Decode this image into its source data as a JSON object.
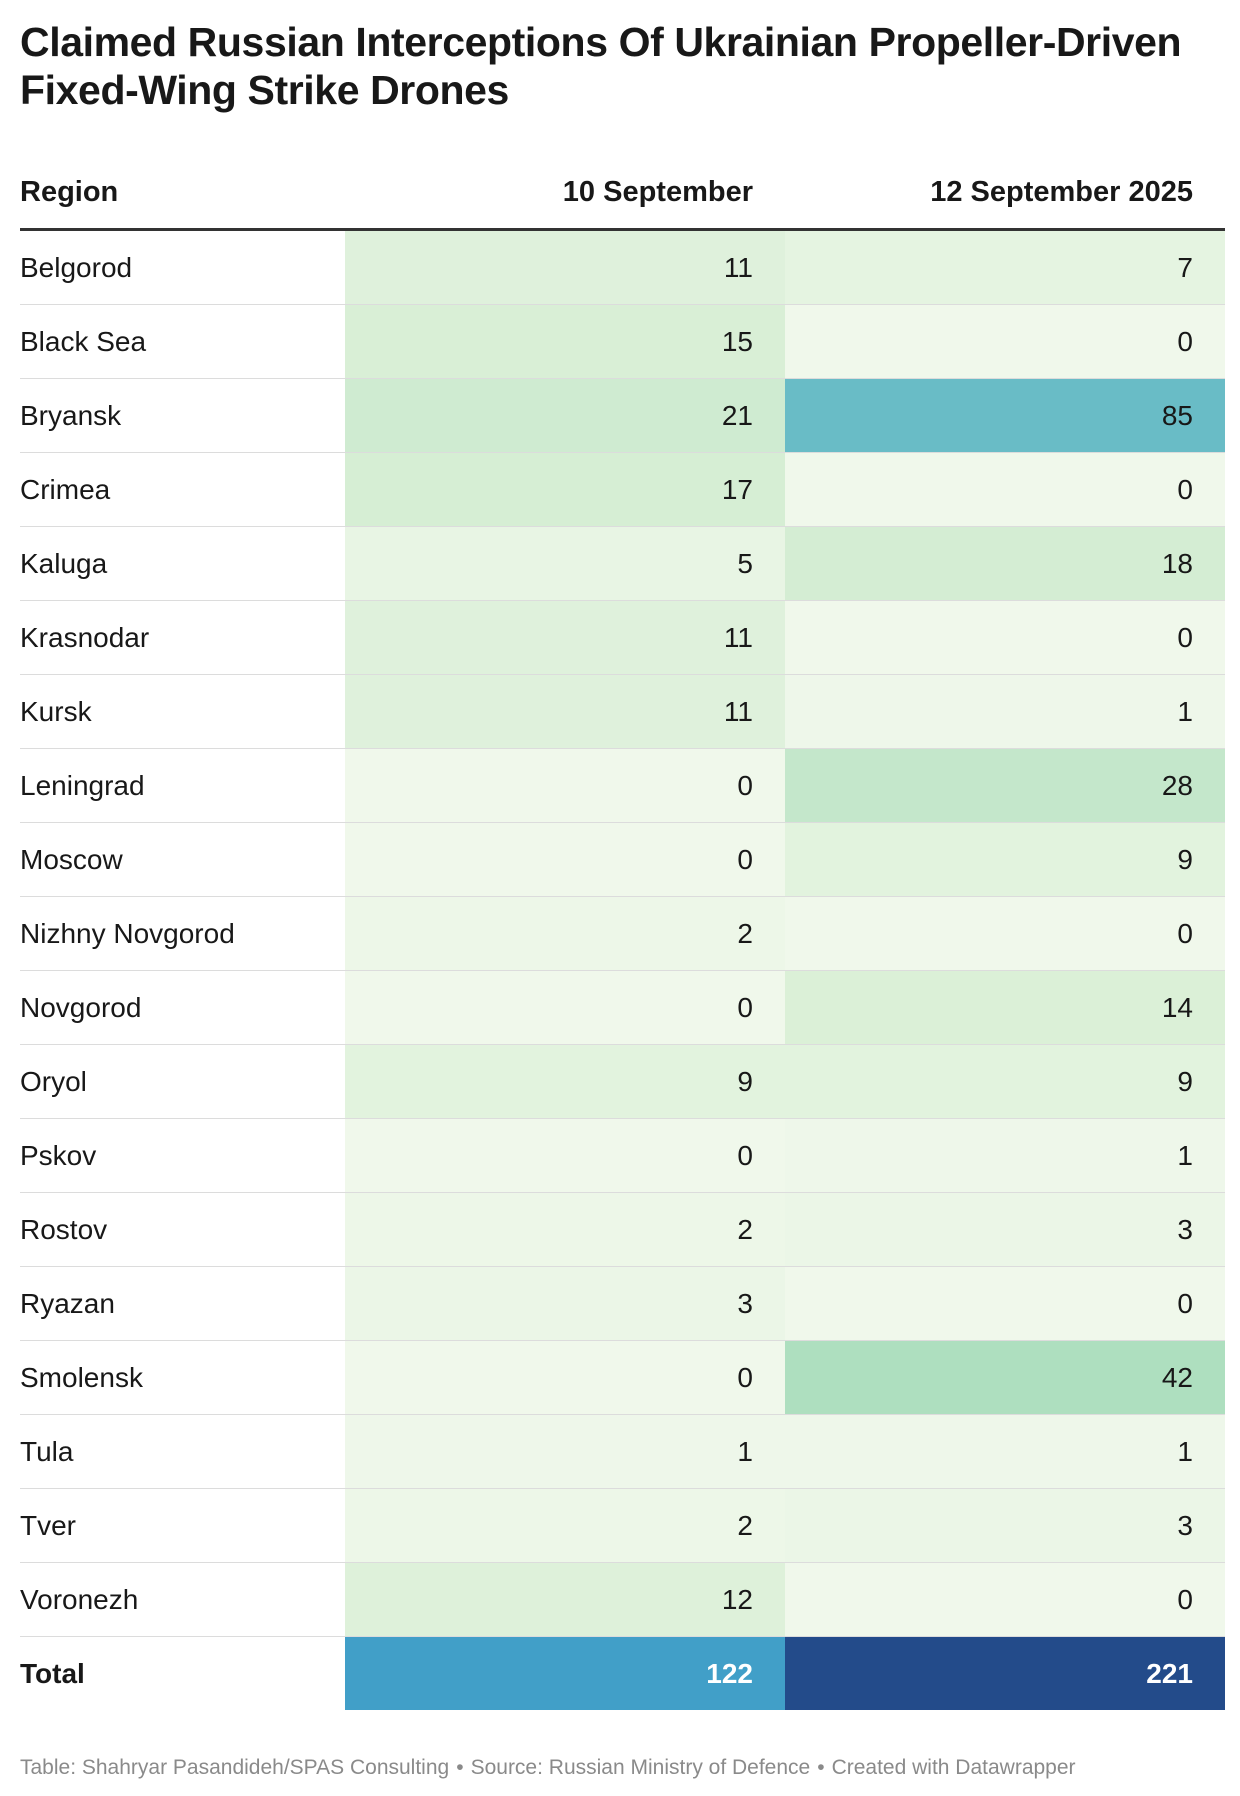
{
  "title": "Claimed Russian Interceptions Of Ukrainian Propeller-Driven Fixed-Wing Strike Drones",
  "columns": [
    "Region",
    "10 September",
    "12 September 2025"
  ],
  "chart_data": {
    "type": "table",
    "title": "Claimed Russian Interceptions Of Ukrainian Propeller-Driven Fixed-Wing Strike Drones",
    "columns": [
      "Region",
      "10 September",
      "12 September 2025"
    ],
    "rows": [
      {
        "region": "Belgorod",
        "v1": "11",
        "v2": "7"
      },
      {
        "region": "Black Sea",
        "v1": "15",
        "v2": "0"
      },
      {
        "region": "Bryansk",
        "v1": "21",
        "v2": "85"
      },
      {
        "region": "Crimea",
        "v1": "17",
        "v2": "0"
      },
      {
        "region": "Kaluga",
        "v1": "5",
        "v2": "18"
      },
      {
        "region": "Krasnodar",
        "v1": "11",
        "v2": "0"
      },
      {
        "region": "Kursk",
        "v1": "11",
        "v2": "1"
      },
      {
        "region": "Leningrad",
        "v1": "0",
        "v2": "28"
      },
      {
        "region": "Moscow",
        "v1": "0",
        "v2": "9"
      },
      {
        "region": "Nizhny Novgorod",
        "v1": "2",
        "v2": "0"
      },
      {
        "region": "Novgorod",
        "v1": "0",
        "v2": "14"
      },
      {
        "region": "Oryol",
        "v1": "9",
        "v2": "9"
      },
      {
        "region": "Pskov",
        "v1": "0",
        "v2": "1"
      },
      {
        "region": "Rostov",
        "v1": "2",
        "v2": "3"
      },
      {
        "region": "Ryazan",
        "v1": "3",
        "v2": "0"
      },
      {
        "region": "Smolensk",
        "v1": "0",
        "v2": "42"
      },
      {
        "region": "Tula",
        "v1": "1",
        "v2": "1"
      },
      {
        "region": "Tver",
        "v1": "2",
        "v2": "3"
      },
      {
        "region": "Voronezh",
        "v1": "12",
        "v2": "0"
      }
    ],
    "total": {
      "label": "Total",
      "v1": "122",
      "v2": "221"
    }
  },
  "colors": {
    "cell_scale": [
      "#f0f8eb",
      "#d9efd6",
      "#a9ddbc",
      "#69bcc6"
    ],
    "total_v1_bg": "#419fc8",
    "total_v2_bg": "#234b8a"
  },
  "footer": {
    "table": "Table: Shahryar Pasandideh/SPAS Consulting",
    "source": "Source: Russian Ministry of Defence",
    "credit": "Created with Datawrapper",
    "separator": "•"
  }
}
